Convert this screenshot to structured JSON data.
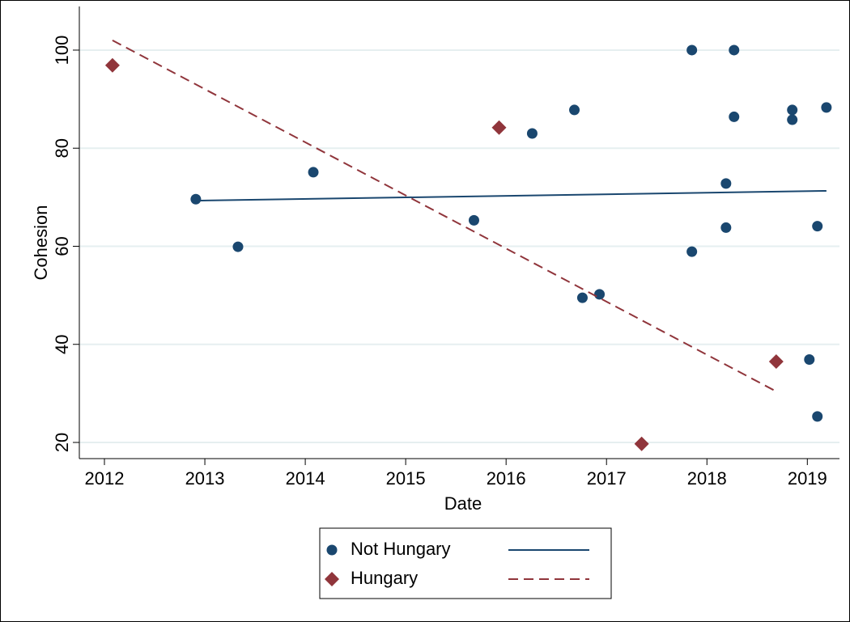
{
  "chart_data": {
    "type": "scatter",
    "x_label": "Date",
    "y_label": "Cohesion",
    "xlim": [
      2011.75,
      2019.32
    ],
    "ylim": [
      16.7,
      108.9
    ],
    "xticks": [
      2012,
      2013,
      2014,
      2015,
      2016,
      2017,
      2018,
      2019
    ],
    "yticks": [
      20,
      40,
      60,
      80,
      100
    ],
    "grid": true,
    "legend": "bottom",
    "series": [
      {
        "name": "Not Hungary",
        "color": "#1a476f",
        "marker": "circle",
        "line": "solid",
        "x": [
          2012.91,
          2013.33,
          2014.08,
          2015.68,
          2016.26,
          2016.68,
          2016.76,
          2016.93,
          2017.85,
          2017.85,
          2018.19,
          2018.19,
          2018.27,
          2018.27,
          2018.85,
          2018.85,
          2019.1,
          2019.02,
          2019.1,
          2019.19
        ],
        "values": [
          69.6,
          59.9,
          75.1,
          65.3,
          83.0,
          87.8,
          49.5,
          50.2,
          100,
          58.9,
          72.8,
          63.8,
          100,
          86.4,
          87.8,
          85.8,
          64.1,
          36.9,
          25.3,
          88.3
        ],
        "fit_x": [
          2012.91,
          2019.19
        ],
        "fit_values": [
          69.3,
          71.3
        ]
      },
      {
        "name": "Hungary",
        "color": "#90353b",
        "marker": "diamond",
        "line": "dashed",
        "x": [
          2012.08,
          2015.93,
          2017.35,
          2018.69
        ],
        "values": [
          96.9,
          84.2,
          19.7,
          36.5
        ],
        "fit_x": [
          2012.08,
          2018.69
        ],
        "fit_values": [
          102.0,
          30.4
        ]
      }
    ]
  }
}
